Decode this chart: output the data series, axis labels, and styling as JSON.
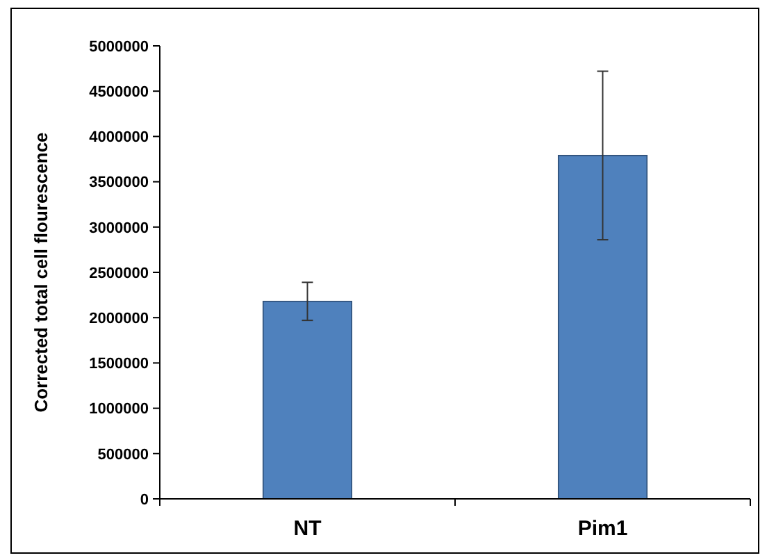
{
  "chart_data": {
    "type": "bar",
    "ylabel": "Corrected total cell flourescence",
    "categories": [
      "NT",
      "Pim1"
    ],
    "values": [
      2180000,
      3790000
    ],
    "errors": [
      210000,
      930000
    ],
    "color": "#4f81bd",
    "ylim": [
      0,
      5000000
    ],
    "yticks": [
      0,
      500000,
      1000000,
      1500000,
      2000000,
      2500000,
      3000000,
      3500000,
      4000000,
      4500000,
      5000000
    ],
    "grid": false
  }
}
